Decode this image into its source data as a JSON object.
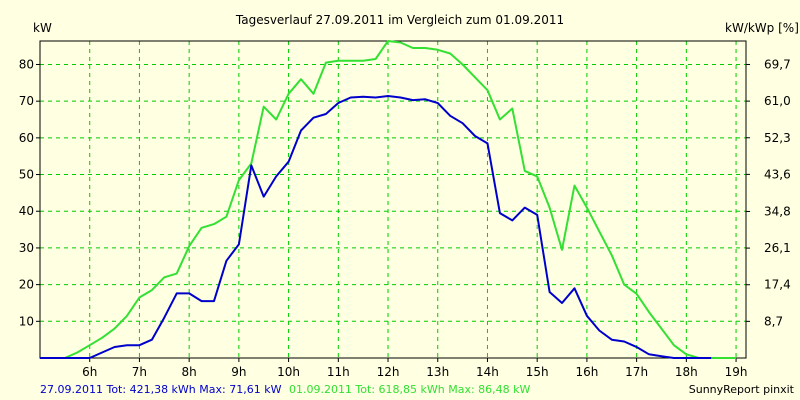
{
  "chart_data": {
    "type": "line",
    "title": "Tagesverlauf 27.09.2011 im Vergleich zum 01.09.2011",
    "ylabel_left": "kW",
    "ylabel_right": "kW/kWp [%]",
    "ylim": [
      0,
      86.4
    ],
    "xlim": [
      5.0,
      19.2
    ],
    "x_ticks": [
      6,
      7,
      8,
      9,
      10,
      11,
      12,
      13,
      14,
      15,
      16,
      17,
      18,
      19
    ],
    "x_tick_labels": [
      "6h",
      "7h",
      "8h",
      "9h",
      "10h",
      "11h",
      "12h",
      "13h",
      "14h",
      "15h",
      "16h",
      "17h",
      "18h",
      "19h"
    ],
    "y_ticks": [
      10,
      20,
      30,
      40,
      50,
      60,
      70,
      80
    ],
    "y_tick_labels": [
      "10",
      "20",
      "30",
      "40",
      "50",
      "60",
      "70",
      "80"
    ],
    "y_right_ticks": [
      8.7,
      17.4,
      26.1,
      34.8,
      43.6,
      52.3,
      61.0,
      69.7
    ],
    "y_right_tick_labels": [
      "8,7",
      "17,4",
      "26,1",
      "34,8",
      "43,6",
      "52,3",
      "61,0",
      "69,7"
    ],
    "grid": true,
    "colors": {
      "background": "#ffffe1",
      "grid": "#00cc00",
      "axis": "#000000",
      "series_1": "#0000cc",
      "series_2": "#33e033"
    },
    "series": [
      {
        "name": "27.09.2011",
        "color": "#0000cc",
        "x": [
          5.0,
          5.25,
          5.5,
          5.75,
          6.0,
          6.25,
          6.5,
          6.75,
          7.0,
          7.25,
          7.5,
          7.75,
          8.0,
          8.25,
          8.5,
          8.75,
          9.0,
          9.25,
          9.5,
          9.75,
          10.0,
          10.25,
          10.5,
          10.75,
          11.0,
          11.25,
          11.5,
          11.75,
          12.0,
          12.25,
          12.5,
          12.75,
          13.0,
          13.25,
          13.5,
          13.75,
          14.0,
          14.25,
          14.5,
          14.75,
          15.0,
          15.25,
          15.5,
          15.75,
          16.0,
          16.25,
          16.5,
          16.75,
          17.0,
          17.25,
          17.5,
          17.75,
          18.0,
          18.25,
          18.5
        ],
        "y": [
          0,
          0,
          0,
          0,
          0,
          1.5,
          3,
          3.5,
          3.5,
          5,
          11,
          17.6,
          17.6,
          15.5,
          15.5,
          26.5,
          31,
          52.5,
          44,
          49.5,
          53.5,
          62,
          65.5,
          66.5,
          69.5,
          71,
          71.2,
          71,
          71.4,
          71,
          70.3,
          70.5,
          69.5,
          66,
          64,
          60.5,
          58.5,
          39.5,
          37.5,
          41,
          39,
          18,
          15,
          19,
          11.5,
          7.5,
          5,
          4.5,
          3,
          1,
          0.5,
          0,
          0,
          0,
          0
        ]
      },
      {
        "name": "01.09.2011",
        "color": "#33e033",
        "x": [
          5.0,
          5.25,
          5.5,
          5.75,
          6.0,
          6.25,
          6.5,
          6.75,
          7.0,
          7.25,
          7.5,
          7.75,
          8.0,
          8.25,
          8.5,
          8.75,
          9.0,
          9.25,
          9.5,
          9.75,
          10.0,
          10.25,
          10.5,
          10.75,
          11.0,
          11.25,
          11.5,
          11.75,
          12.0,
          12.25,
          12.5,
          12.75,
          13.0,
          13.25,
          13.5,
          13.75,
          14.0,
          14.25,
          14.5,
          14.75,
          15.0,
          15.25,
          15.5,
          15.75,
          16.0,
          16.25,
          16.5,
          16.75,
          17.0,
          17.25,
          17.5,
          17.75,
          18.0,
          18.25,
          18.5,
          18.75,
          19.0
        ],
        "y": [
          0,
          0,
          0,
          1.5,
          3.5,
          5.5,
          8,
          11.5,
          16.5,
          18.5,
          22,
          23,
          30.5,
          35.5,
          36.5,
          38.5,
          48.5,
          53,
          68.5,
          65,
          72,
          76,
          72,
          80.5,
          81,
          81,
          81,
          81.5,
          86.4,
          86,
          84.5,
          84.5,
          84,
          83,
          80,
          76.5,
          73,
          65,
          68,
          51,
          49.5,
          41,
          29.5,
          47,
          41,
          34.5,
          28,
          20,
          17.5,
          12.5,
          8,
          3.5,
          1,
          0,
          0,
          0,
          0
        ]
      }
    ]
  },
  "footer": {
    "series1_label": "27.09.2011 Tot: 421,38 kWh Max: 71,61 kW",
    "series2_label": "01.09.2011 Tot: 618,85 kWh Max: 86,48 kW",
    "brand": "SunnyReport pinxit"
  }
}
